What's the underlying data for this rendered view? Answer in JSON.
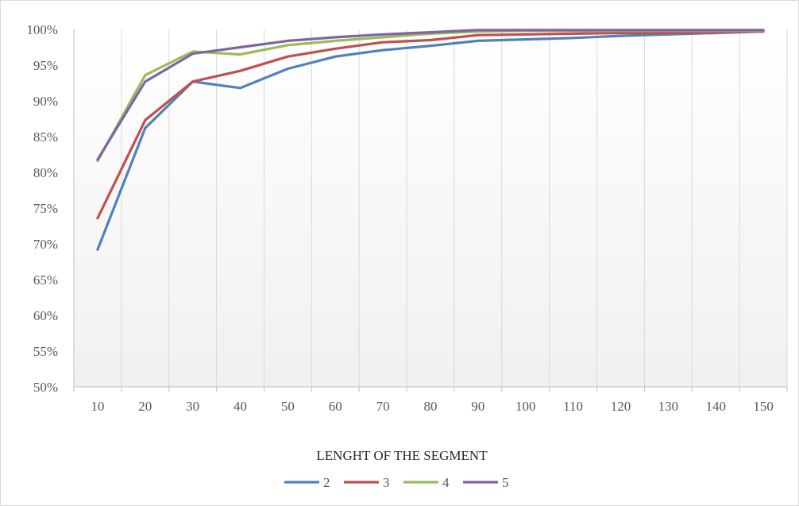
{
  "chart_data": {
    "type": "line",
    "title": "",
    "xlabel": "LENGHT OF THE SEGMENT",
    "ylabel": "",
    "categories": [
      "10",
      "20",
      "30",
      "40",
      "50",
      "60",
      "70",
      "80",
      "90",
      "100",
      "110",
      "120",
      "130",
      "140",
      "150"
    ],
    "ylim": [
      0.5,
      1.0
    ],
    "y_ticks": [
      "50%",
      "55%",
      "60%",
      "65%",
      "70%",
      "75%",
      "80%",
      "85%",
      "90%",
      "95%",
      "100%"
    ],
    "y_tick_values": [
      0.5,
      0.55,
      0.6,
      0.65,
      0.7,
      0.75,
      0.8,
      0.85,
      0.9,
      0.95,
      1.0
    ],
    "grid": "vertical",
    "legend_position": "bottom",
    "series": [
      {
        "name": "2",
        "color": "#4f81bd",
        "values": [
          0.692,
          0.862,
          0.927,
          0.918,
          0.945,
          0.962,
          0.971,
          0.977,
          0.984,
          0.986,
          0.988,
          0.991,
          0.993,
          0.995,
          0.997
        ]
      },
      {
        "name": "3",
        "color": "#c0504d",
        "values": [
          0.736,
          0.873,
          0.927,
          0.942,
          0.962,
          0.973,
          0.982,
          0.985,
          0.992,
          0.993,
          0.994,
          0.995,
          0.995,
          0.996,
          0.997
        ]
      },
      {
        "name": "4",
        "color": "#9bbb59",
        "values": [
          0.816,
          0.936,
          0.969,
          0.965,
          0.978,
          0.984,
          0.989,
          0.994,
          0.997,
          0.998,
          0.998,
          0.998,
          0.998,
          0.998,
          0.998
        ]
      },
      {
        "name": "5",
        "color": "#8064a2",
        "values": [
          0.818,
          0.927,
          0.966,
          0.975,
          0.984,
          0.989,
          0.993,
          0.996,
          0.999,
          0.999,
          0.999,
          0.999,
          0.999,
          0.999,
          0.999
        ]
      }
    ]
  }
}
